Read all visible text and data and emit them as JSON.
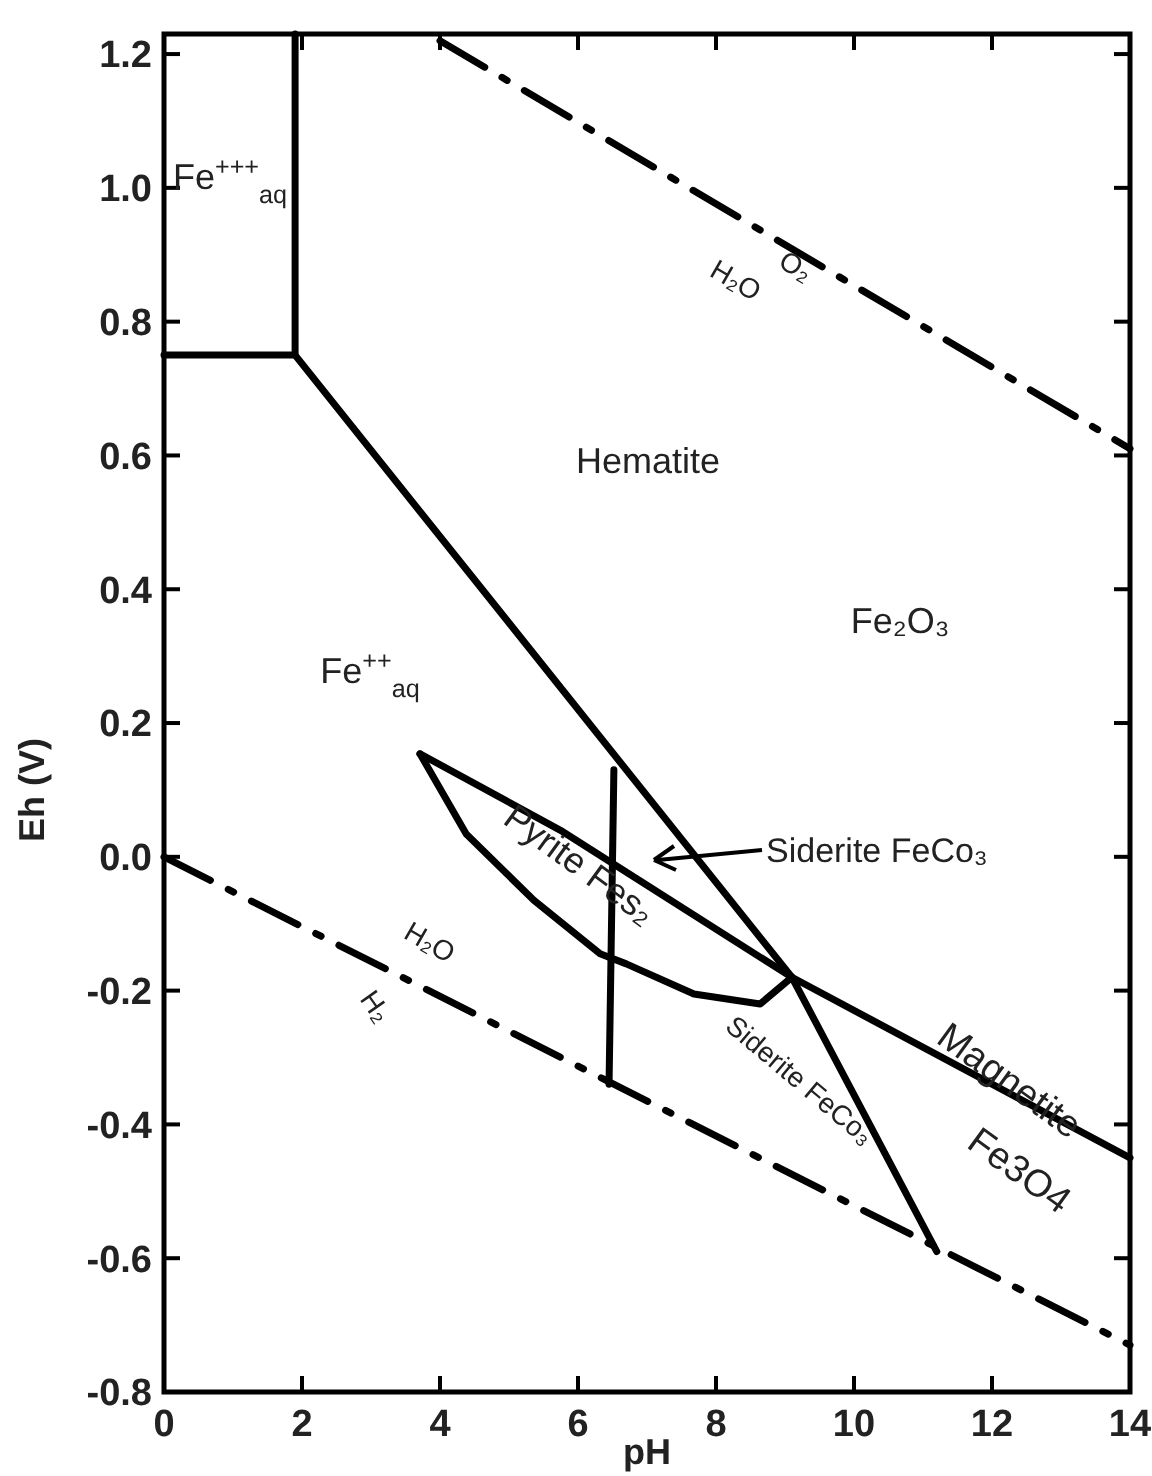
{
  "chart_data": {
    "type": "line",
    "xlabel": "pH",
    "ylabel": "Eh (V)",
    "xlim": [
      0,
      14
    ],
    "ylim": [
      -0.8,
      1.23
    ],
    "xticks": [
      0,
      2,
      4,
      6,
      8,
      10,
      12,
      14
    ],
    "yticks": [
      {
        "value": -0.8,
        "label": "-0.8"
      },
      {
        "value": -0.6,
        "label": "-0.6"
      },
      {
        "value": -0.4,
        "label": "-0.4"
      },
      {
        "value": -0.2,
        "label": "-0.2"
      },
      {
        "value": 0,
        "label": "0.0"
      },
      {
        "value": 0.2,
        "label": "0.2"
      },
      {
        "value": 0.4,
        "label": "0.4"
      },
      {
        "value": 0.6,
        "label": "0.6"
      },
      {
        "value": 0.8,
        "label": "0.8"
      },
      {
        "value": 1.0,
        "label": "1.0"
      },
      {
        "value": 1.2,
        "label": "1.2"
      }
    ],
    "grid": false,
    "marker": "none",
    "series": [
      {
        "color": "#000000",
        "line_style": "solid",
        "x": [
          0,
          1.9,
          1.9
        ],
        "values": [
          0.75,
          0.75,
          1.23
        ]
      },
      {
        "color": "#000000",
        "line_style": "solid",
        "x": [
          1.9,
          9.1,
          14
        ],
        "values": [
          0.75,
          -0.18,
          -0.45
        ]
      },
      {
        "color": "#000000",
        "line_style": "dashed",
        "x": [
          4,
          14
        ],
        "values": [
          1.22,
          0.61
        ]
      },
      {
        "color": "#000000",
        "line_style": "dashed",
        "x": [
          0,
          14
        ],
        "values": [
          0,
          -0.73
        ]
      },
      {
        "color": "#000000",
        "line_style": "solid",
        "x": [
          6.45,
          6.52
        ],
        "values": [
          -0.34,
          0.13
        ]
      },
      {
        "color": "#000000",
        "line_style": "solid",
        "x": [
          9.1,
          11.2
        ],
        "values": [
          -0.18,
          -0.59
        ]
      },
      {
        "color": "#000000",
        "line_style": "solid",
        "x": [
          3.71,
          5.74,
          9.1
        ],
        "values": [
          0.154,
          0.04,
          -0.18
        ]
      },
      {
        "color": "#000000",
        "line_style": "solid",
        "x": [
          3.71,
          4.38,
          5.36,
          6.32,
          6.7,
          7.68,
          8.64,
          9.1
        ],
        "values": [
          0.154,
          0.034,
          -0.065,
          -0.145,
          -0.16,
          -0.205,
          -0.22,
          -0.18
        ]
      }
    ],
    "annotations": [
      "Fe$^{+++}$$_{aq}$",
      "Hematite",
      "Fe₂O₃",
      "Fe$^{++}$$_{aq}$",
      "O₂",
      "H₂O",
      "H₂O",
      "H₂",
      "Pyrite  Fes₂",
      "Siderite   FeCo₃",
      "Siderite  FeCo₃",
      "Magnetite",
      "Fe3O4"
    ]
  }
}
